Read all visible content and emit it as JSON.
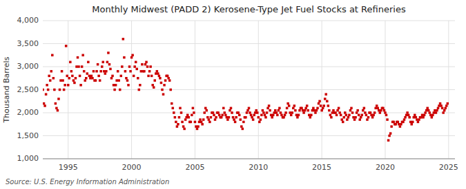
{
  "chart_data": {
    "type": "scatter",
    "title": "Monthly Midwest (PADD 2) Kerosene-Type Jet Fuel Stocks at Refineries",
    "ylabel": "Thousand Barrels",
    "source": "Source: U.S. Energy Information Administration",
    "color": "#cc0000",
    "marker": "square",
    "grid": true,
    "xlim": [
      1993.0,
      2025.5
    ],
    "xticks": [
      1995,
      2000,
      2005,
      2010,
      2015,
      2020,
      2025
    ],
    "ylim": [
      1000,
      4000
    ],
    "yticks": [
      {
        "value": 1000,
        "label": "1,000"
      },
      {
        "value": 1500,
        "label": "1,500"
      },
      {
        "value": 2000,
        "label": "2,000"
      },
      {
        "value": 2500,
        "label": "2,500"
      },
      {
        "value": 3000,
        "label": "3,000"
      },
      {
        "value": 3500,
        "label": "3,500"
      },
      {
        "value": 4000,
        "label": "4,000"
      }
    ],
    "x": [
      1993.0,
      1993.083,
      1993.167,
      1993.25,
      1993.333,
      1993.417,
      1993.5,
      1993.583,
      1993.667,
      1993.75,
      1993.833,
      1993.917,
      1994.0,
      1994.083,
      1994.167,
      1994.25,
      1994.333,
      1994.417,
      1994.5,
      1994.583,
      1994.667,
      1994.75,
      1994.833,
      1994.917,
      1995.0,
      1995.083,
      1995.167,
      1995.25,
      1995.333,
      1995.417,
      1995.5,
      1995.583,
      1995.667,
      1995.75,
      1995.833,
      1995.917,
      1996.0,
      1996.083,
      1996.167,
      1996.25,
      1996.333,
      1996.417,
      1996.5,
      1996.583,
      1996.667,
      1996.75,
      1996.833,
      1996.917,
      1997.0,
      1997.083,
      1997.167,
      1997.25,
      1997.333,
      1997.417,
      1997.5,
      1997.583,
      1997.667,
      1997.75,
      1997.833,
      1997.917,
      1998.0,
      1998.083,
      1998.167,
      1998.25,
      1998.333,
      1998.417,
      1998.5,
      1998.583,
      1998.667,
      1998.75,
      1998.833,
      1998.917,
      1999.0,
      1999.083,
      1999.167,
      1999.25,
      1999.333,
      1999.417,
      1999.5,
      1999.583,
      1999.667,
      1999.75,
      1999.833,
      1999.917,
      2000.0,
      2000.083,
      2000.167,
      2000.25,
      2000.333,
      2000.417,
      2000.5,
      2000.583,
      2000.667,
      2000.75,
      2000.833,
      2000.917,
      2001.0,
      2001.083,
      2001.167,
      2001.25,
      2001.333,
      2001.417,
      2001.5,
      2001.583,
      2001.667,
      2001.75,
      2001.833,
      2001.917,
      2002.0,
      2002.083,
      2002.167,
      2002.25,
      2002.333,
      2002.417,
      2002.5,
      2002.583,
      2002.667,
      2002.75,
      2002.833,
      2002.917,
      2003.0,
      2003.083,
      2003.167,
      2003.25,
      2003.333,
      2003.417,
      2003.5,
      2003.583,
      2003.667,
      2003.75,
      2003.833,
      2003.917,
      2004.0,
      2004.083,
      2004.167,
      2004.25,
      2004.333,
      2004.417,
      2004.5,
      2004.583,
      2004.667,
      2004.75,
      2004.833,
      2004.917,
      2005.0,
      2005.083,
      2005.167,
      2005.25,
      2005.333,
      2005.417,
      2005.5,
      2005.583,
      2005.667,
      2005.75,
      2005.833,
      2005.917,
      2006.0,
      2006.083,
      2006.167,
      2006.25,
      2006.333,
      2006.417,
      2006.5,
      2006.583,
      2006.667,
      2006.75,
      2006.833,
      2006.917,
      2007.0,
      2007.083,
      2007.167,
      2007.25,
      2007.333,
      2007.417,
      2007.5,
      2007.583,
      2007.667,
      2007.75,
      2007.833,
      2007.917,
      2008.0,
      2008.083,
      2008.167,
      2008.25,
      2008.333,
      2008.417,
      2008.5,
      2008.583,
      2008.667,
      2008.75,
      2008.833,
      2008.917,
      2009.0,
      2009.083,
      2009.167,
      2009.25,
      2009.333,
      2009.417,
      2009.5,
      2009.583,
      2009.667,
      2009.75,
      2009.833,
      2009.917,
      2010.0,
      2010.083,
      2010.167,
      2010.25,
      2010.333,
      2010.417,
      2010.5,
      2010.583,
      2010.667,
      2010.75,
      2010.833,
      2010.917,
      2011.0,
      2011.083,
      2011.167,
      2011.25,
      2011.333,
      2011.417,
      2011.5,
      2011.583,
      2011.667,
      2011.75,
      2011.833,
      2011.917,
      2012.0,
      2012.083,
      2012.167,
      2012.25,
      2012.333,
      2012.417,
      2012.5,
      2012.583,
      2012.667,
      2012.75,
      2012.833,
      2012.917,
      2013.0,
      2013.083,
      2013.167,
      2013.25,
      2013.333,
      2013.417,
      2013.5,
      2013.583,
      2013.667,
      2013.75,
      2013.833,
      2013.917,
      2014.0,
      2014.083,
      2014.167,
      2014.25,
      2014.333,
      2014.417,
      2014.5,
      2014.583,
      2014.667,
      2014.75,
      2014.833,
      2014.917,
      2015.0,
      2015.083,
      2015.167,
      2015.25,
      2015.333,
      2015.417,
      2015.5,
      2015.583,
      2015.667,
      2015.75,
      2015.833,
      2015.917,
      2016.0,
      2016.083,
      2016.167,
      2016.25,
      2016.333,
      2016.417,
      2016.5,
      2016.583,
      2016.667,
      2016.75,
      2016.833,
      2016.917,
      2017.0,
      2017.083,
      2017.167,
      2017.25,
      2017.333,
      2017.417,
      2017.5,
      2017.583,
      2017.667,
      2017.75,
      2017.833,
      2017.917,
      2018.0,
      2018.083,
      2018.167,
      2018.25,
      2018.333,
      2018.417,
      2018.5,
      2018.583,
      2018.667,
      2018.75,
      2018.833,
      2018.917,
      2019.0,
      2019.083,
      2019.167,
      2019.25,
      2019.333,
      2019.417,
      2019.5,
      2019.583,
      2019.667,
      2019.75,
      2019.833,
      2019.917,
      2020.0,
      2020.083,
      2020.167,
      2020.25,
      2020.333,
      2020.417,
      2020.5,
      2020.583,
      2020.667,
      2020.75,
      2020.833,
      2020.917,
      2021.0,
      2021.083,
      2021.167,
      2021.25,
      2021.333,
      2021.417,
      2021.5,
      2021.583,
      2021.667,
      2021.75,
      2021.833,
      2021.917,
      2022.0,
      2022.083,
      2022.167,
      2022.25,
      2022.333,
      2022.417,
      2022.5,
      2022.583,
      2022.667,
      2022.75,
      2022.833,
      2022.917,
      2023.0,
      2023.083,
      2023.167,
      2023.25,
      2023.333,
      2023.417,
      2023.5,
      2023.583,
      2023.667,
      2023.75,
      2023.833,
      2023.917,
      2024.0,
      2024.083,
      2024.167,
      2024.25,
      2024.333,
      2024.417,
      2024.5,
      2024.583,
      2024.667,
      2024.75,
      2024.833,
      2024.917
    ],
    "values": [
      2500,
      2200,
      2150,
      2400,
      2600,
      2500,
      2800,
      2700,
      2900,
      3250,
      2750,
      2500,
      2200,
      2100,
      2050,
      2300,
      2500,
      2700,
      2900,
      2700,
      2500,
      2600,
      3450,
      2800,
      2600,
      2750,
      3100,
      2900,
      2800,
      2700,
      2650,
      2750,
      3000,
      3200,
      3000,
      2800,
      2600,
      3000,
      3250,
      2900,
      2700,
      2750,
      2850,
      3100,
      2800,
      2750,
      2800,
      2750,
      2900,
      2700,
      2700,
      2900,
      3050,
      2800,
      2700,
      2900,
      3000,
      3100,
      2900,
      2850,
      2900,
      3100,
      3300,
      3050,
      2950,
      2750,
      2800,
      2600,
      2500,
      2600,
      2700,
      2900,
      2700,
      2500,
      2800,
      3000,
      3600,
      3200,
      2900,
      2750,
      2700,
      2600,
      3000,
      2900,
      3200,
      3250,
      2800,
      3000,
      3100,
      2950,
      2750,
      2500,
      2600,
      2900,
      3050,
      2900,
      2900,
      3050,
      3100,
      3000,
      2800,
      2900,
      3000,
      2800,
      2600,
      2550,
      2700,
      2850,
      2900,
      2850,
      2800,
      2750,
      2650,
      2500,
      2400,
      2600,
      2700,
      2800,
      2800,
      2750,
      2700,
      2500,
      2200,
      2100,
      2000,
      1900,
      1800,
      1700,
      1750,
      1900,
      2100,
      2000,
      1800,
      1700,
      1650,
      1850,
      1900,
      1950,
      1900,
      1800,
      1800,
      1950,
      2100,
      2000,
      1800,
      1700,
      1650,
      1700,
      1800,
      1850,
      1800,
      1750,
      1850,
      2000,
      2100,
      2050,
      1900,
      1850,
      1800,
      1900,
      2000,
      2000,
      1950,
      1850,
      1900,
      2000,
      2000,
      1950,
      1900,
      1900,
      1950,
      2100,
      2000,
      1950,
      1900,
      1850,
      1900,
      2050,
      2100,
      2000,
      1900,
      1850,
      1800,
      1900,
      2000,
      2000,
      1950,
      1850,
      1700,
      1650,
      1800,
      1900,
      1900,
      2000,
      2050,
      2100,
      2000,
      1950,
      1900,
      1850,
      1950,
      2000,
      2050,
      2000,
      1900,
      1800,
      1850,
      1950,
      2050,
      2000,
      1950,
      1900,
      2000,
      2100,
      2150,
      2050,
      1950,
      1900,
      1950,
      2000,
      2050,
      2000,
      1950,
      2050,
      2100,
      2000,
      1950,
      1900,
      1900,
      1950,
      2000,
      2100,
      2200,
      2150,
      2000,
      1950,
      2000,
      2100,
      2150,
      2050,
      1950,
      1900,
      1950,
      2050,
      2100,
      2100,
      2050,
      2000,
      2050,
      2100,
      2150,
      2050,
      1950,
      1900,
      1950,
      2050,
      2100,
      2050,
      2000,
      2050,
      2100,
      2200,
      2250,
      2150,
      2050,
      2100,
      2150,
      2300,
      2400,
      2250,
      2150,
      2050,
      1950,
      1900,
      2000,
      2050,
      2000,
      2000,
      1950,
      2050,
      2100,
      2000,
      1950,
      1850,
      1800,
      1900,
      2000,
      1950,
      1850,
      1900,
      1950,
      2050,
      2100,
      2000,
      1900,
      1850,
      1900,
      2000,
      2050,
      1950,
      1850,
      1900,
      1950,
      2050,
      2100,
      2000,
      1950,
      1850,
      1900,
      2000,
      2000,
      1950,
      1900,
      1950,
      2000,
      2100,
      2150,
      2100,
      2050,
      2000,
      2050,
      2100,
      2100,
      2050,
      2000,
      1950,
      1850,
      1400,
      1500,
      1550,
      1700,
      1800,
      1800,
      1750,
      1750,
      1800,
      1800,
      1750,
      1700,
      1750,
      1800,
      1800,
      1850,
      1900,
      1950,
      2000,
      1950,
      1900,
      1800,
      1750,
      1800,
      1900,
      1950,
      1900,
      1850,
      1800,
      1850,
      1900,
      1900,
      1950,
      1900,
      1950,
      2000,
      2050,
      2100,
      2050,
      2000,
      1950,
      1900,
      1950,
      2000,
      2050,
      2000,
      2050,
      2100,
      2150,
      2200,
      2150,
      2100,
      2000,
      2050,
      2100,
      2150,
      2200
    ]
  }
}
